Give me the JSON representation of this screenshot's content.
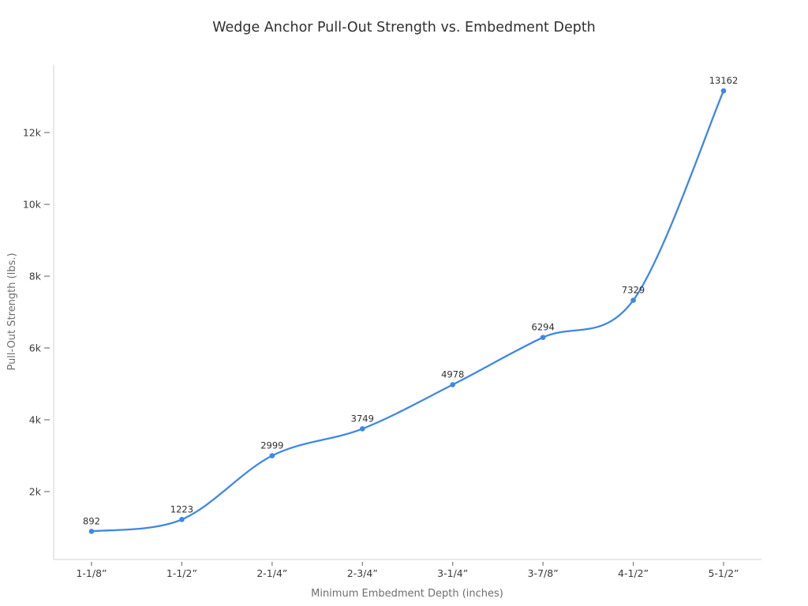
{
  "page": {
    "background_color": "#ffffff"
  },
  "chart_data": {
    "type": "line",
    "line_shape": "spline",
    "title": "Wedge Anchor Pull-Out Strength vs. Embedment Depth",
    "xlabel": "Minimum Embedment Depth (inches)",
    "ylabel": "Pull-Out Strength (lbs.)",
    "categories": [
      "1-1/8”",
      "1-1/2”",
      "2-1/4”",
      "2-3/4”",
      "3-1/4”",
      "3-7/8”",
      "4-1/2”",
      "5-1/2”"
    ],
    "values": [
      892,
      1223,
      2999,
      3749,
      4978,
      6294,
      7329,
      13162
    ],
    "point_labels": [
      "892",
      "1223",
      "2999",
      "3749",
      "4978",
      "6294",
      "7329",
      "13162"
    ],
    "yticks": [
      {
        "value": 2000,
        "label": "2k"
      },
      {
        "value": 4000,
        "label": "4k"
      },
      {
        "value": 6000,
        "label": "6k"
      },
      {
        "value": 8000,
        "label": "8k"
      },
      {
        "value": 10000,
        "label": "10k"
      },
      {
        "value": 12000,
        "label": "12k"
      }
    ],
    "ylim": [
      110,
      13890
    ],
    "grid": false,
    "legend": "none",
    "colors": {
      "line": "#3e87e6",
      "marker": "#3e87e6",
      "axis_line": "#dcdcdc",
      "tick_mark": "#787878",
      "tick_label": "#3b3b3b",
      "axis_title": "#6e6e6e",
      "title": "#2f2f2f",
      "point_label": "#2f2f2f",
      "background": "#ffffff"
    }
  }
}
